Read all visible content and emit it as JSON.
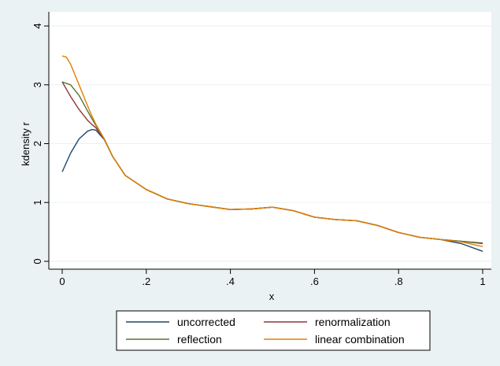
{
  "chart_data": {
    "type": "line",
    "xlabel": "x",
    "ylabel": "kdensity r",
    "xlim": [
      0,
      1
    ],
    "ylim": [
      0,
      4
    ],
    "x_ticks": [
      0,
      0.2,
      0.4,
      0.6,
      0.8,
      1
    ],
    "x_tick_labels": [
      "0",
      ".2",
      ".4",
      ".6",
      ".8",
      "1"
    ],
    "y_ticks": [
      0,
      1,
      2,
      3,
      4
    ],
    "y_tick_labels": [
      "0",
      "1",
      "2",
      "3",
      "4"
    ],
    "grid": "horizontal",
    "legend_position": "bottom",
    "series": [
      {
        "name": "uncorrected",
        "color": "#1a476f",
        "x": [
          0,
          0.02,
          0.04,
          0.06,
          0.07,
          0.08,
          0.1,
          0.12,
          0.15,
          0.2,
          0.25,
          0.3,
          0.35,
          0.4,
          0.45,
          0.5,
          0.55,
          0.6,
          0.65,
          0.7,
          0.75,
          0.8,
          0.85,
          0.9,
          0.95,
          1.0
        ],
        "values": [
          1.52,
          1.84,
          2.08,
          2.21,
          2.24,
          2.23,
          2.07,
          1.78,
          1.46,
          1.22,
          1.06,
          0.98,
          0.93,
          0.88,
          0.89,
          0.92,
          0.86,
          0.75,
          0.71,
          0.69,
          0.61,
          0.49,
          0.41,
          0.37,
          0.3,
          0.17
        ]
      },
      {
        "name": "renormalization",
        "color": "#90353b",
        "x": [
          0,
          0.02,
          0.04,
          0.06,
          0.07,
          0.08,
          0.1,
          0.12,
          0.15,
          0.2,
          0.25,
          0.3,
          0.35,
          0.4,
          0.45,
          0.5,
          0.55,
          0.6,
          0.65,
          0.7,
          0.75,
          0.8,
          0.85,
          0.9,
          0.95,
          1.0
        ],
        "values": [
          3.05,
          2.8,
          2.58,
          2.4,
          2.33,
          2.27,
          2.08,
          1.78,
          1.46,
          1.22,
          1.06,
          0.98,
          0.93,
          0.88,
          0.89,
          0.92,
          0.86,
          0.75,
          0.71,
          0.69,
          0.61,
          0.49,
          0.41,
          0.37,
          0.34,
          0.31
        ]
      },
      {
        "name": "reflection",
        "color": "#55752f",
        "x": [
          0,
          0.02,
          0.04,
          0.06,
          0.07,
          0.08,
          0.1,
          0.12,
          0.15,
          0.2,
          0.25,
          0.3,
          0.35,
          0.4,
          0.45,
          0.5,
          0.55,
          0.6,
          0.65,
          0.7,
          0.75,
          0.8,
          0.85,
          0.9,
          0.95,
          1.0
        ],
        "values": [
          3.05,
          3.0,
          2.82,
          2.56,
          2.43,
          2.31,
          2.08,
          1.78,
          1.46,
          1.22,
          1.06,
          0.98,
          0.93,
          0.88,
          0.89,
          0.92,
          0.86,
          0.75,
          0.71,
          0.69,
          0.61,
          0.49,
          0.41,
          0.37,
          0.34,
          0.3
        ]
      },
      {
        "name": "linear combination",
        "color": "#e37e00",
        "x": [
          0,
          0.01,
          0.02,
          0.04,
          0.06,
          0.07,
          0.08,
          0.1,
          0.12,
          0.15,
          0.2,
          0.25,
          0.3,
          0.35,
          0.4,
          0.45,
          0.5,
          0.55,
          0.6,
          0.65,
          0.7,
          0.75,
          0.8,
          0.85,
          0.9,
          0.95,
          1.0
        ],
        "values": [
          3.49,
          3.47,
          3.35,
          3.0,
          2.65,
          2.48,
          2.33,
          2.08,
          1.78,
          1.46,
          1.22,
          1.06,
          0.98,
          0.93,
          0.88,
          0.89,
          0.92,
          0.86,
          0.75,
          0.71,
          0.69,
          0.61,
          0.49,
          0.41,
          0.37,
          0.33,
          0.25
        ]
      }
    ]
  }
}
